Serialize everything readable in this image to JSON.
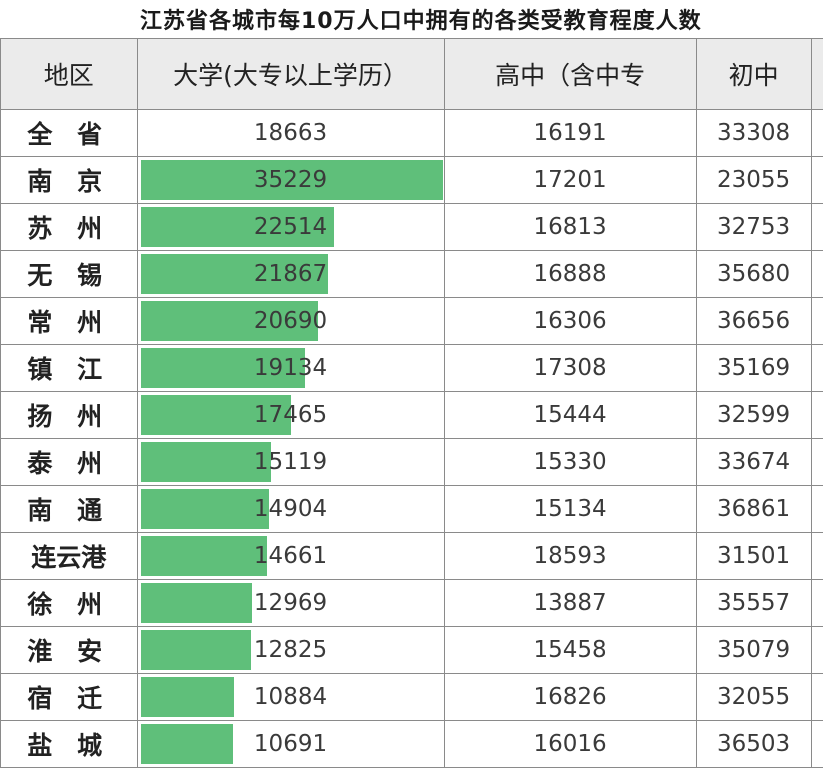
{
  "title": "江苏省各城市每10万人口中拥有的各类受教育程度人数",
  "colors": {
    "bar": "#5fbf7a",
    "header_bg": "#ebebeb"
  },
  "chart_data": {
    "type": "table",
    "title": "江苏省各城市每10万人口中拥有的各类受教育程度人数",
    "columns": [
      "地区",
      "大学(大专以上学历）",
      "高中（含中专",
      "初中"
    ],
    "bar_column": "大学(大专以上学历）",
    "bar_max": 35229,
    "rows": [
      {
        "region": "全 省",
        "college": 18663,
        "high": 16191,
        "middle": 33308,
        "bar": false
      },
      {
        "region": "南 京",
        "college": 35229,
        "high": 17201,
        "middle": 23055,
        "bar": true
      },
      {
        "region": "苏 州",
        "college": 22514,
        "high": 16813,
        "middle": 32753,
        "bar": true
      },
      {
        "region": "无 锡",
        "college": 21867,
        "high": 16888,
        "middle": 35680,
        "bar": true
      },
      {
        "region": "常 州",
        "college": 20690,
        "high": 16306,
        "middle": 36656,
        "bar": true
      },
      {
        "region": "镇 江",
        "college": 19134,
        "high": 17308,
        "middle": 35169,
        "bar": true
      },
      {
        "region": "扬 州",
        "college": 17465,
        "high": 15444,
        "middle": 32599,
        "bar": true
      },
      {
        "region": "泰 州",
        "college": 15119,
        "high": 15330,
        "middle": 33674,
        "bar": true
      },
      {
        "region": "南 通",
        "college": 14904,
        "high": 15134,
        "middle": 36861,
        "bar": true
      },
      {
        "region": "连云港",
        "college": 14661,
        "high": 18593,
        "middle": 31501,
        "bar": true
      },
      {
        "region": "徐 州",
        "college": 12969,
        "high": 13887,
        "middle": 35557,
        "bar": true
      },
      {
        "region": "淮 安",
        "college": 12825,
        "high": 15458,
        "middle": 35079,
        "bar": true
      },
      {
        "region": "宿 迁",
        "college": 10884,
        "high": 16826,
        "middle": 32055,
        "bar": true
      },
      {
        "region": "盐 城",
        "college": 10691,
        "high": 16016,
        "middle": 36503,
        "bar": true
      }
    ]
  }
}
